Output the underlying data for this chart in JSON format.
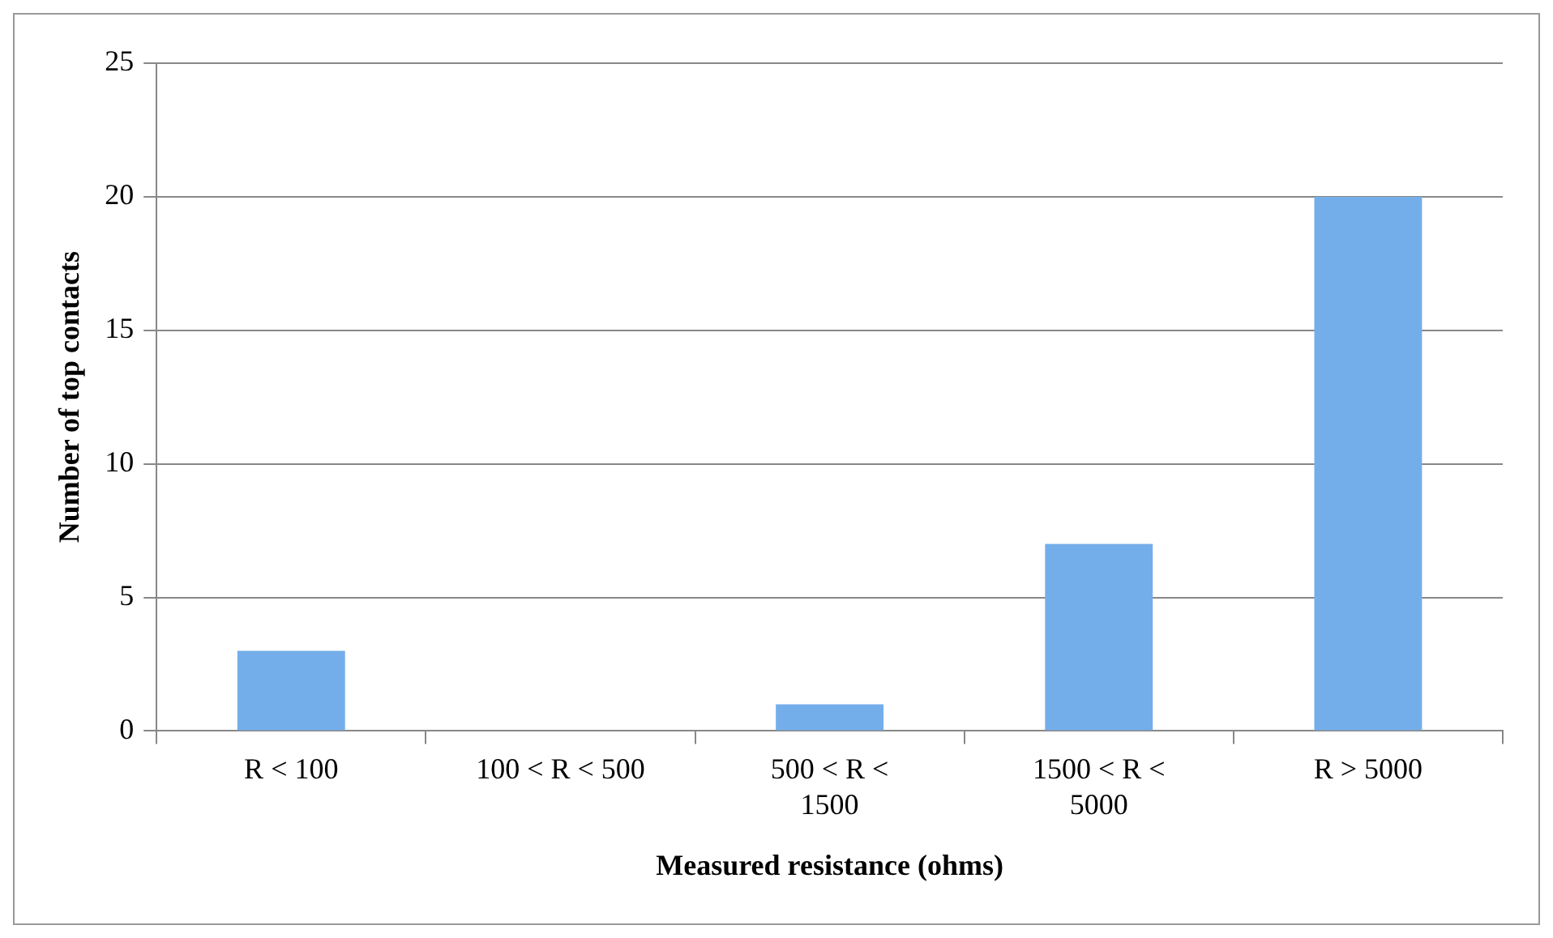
{
  "chart_data": {
    "type": "bar",
    "xlabel": "Measured resistance (ohms)",
    "ylabel": "Number of top contacts",
    "categories": [
      "R < 100",
      "100 < R < 500",
      "500 < R < 1500",
      "1500 < R < 5000",
      "R > 5000"
    ],
    "values": [
      3,
      0,
      1,
      7,
      20
    ],
    "color": "#74aeea",
    "ylim": [
      0,
      25
    ],
    "yticks": [
      0,
      5,
      10,
      15,
      20,
      25
    ],
    "grid": "y",
    "legend": false
  }
}
